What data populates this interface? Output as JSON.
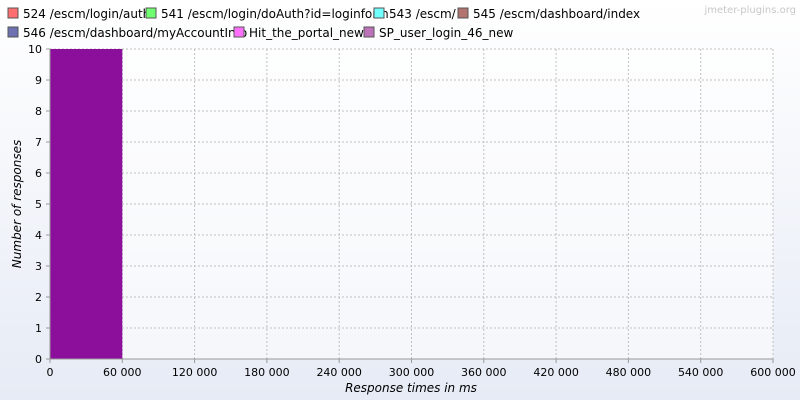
{
  "watermark": "jmeter-plugins.org",
  "chart_data": {
    "type": "bar",
    "title": "",
    "xlabel": "Response times in ms",
    "ylabel": "Number of responses",
    "xlim": [
      0,
      600000
    ],
    "ylim": [
      0,
      10
    ],
    "x_ticks": [
      "0",
      "60 000",
      "120 000",
      "180 000",
      "240 000",
      "300 000",
      "360 000",
      "420 000",
      "480 000",
      "540 000",
      "600 000"
    ],
    "y_ticks": [
      "0",
      "1",
      "2",
      "3",
      "4",
      "5",
      "6",
      "7",
      "8",
      "9",
      "10"
    ],
    "grid": true,
    "legend_position": "top",
    "series": [
      {
        "name": "524 /escm/login/auth",
        "color": "#ff6f6f",
        "values": []
      },
      {
        "name": "541 /escm/login/doAuth?id=loginform",
        "color": "#6fff6f",
        "values": []
      },
      {
        "name": "543 /escm/",
        "color": "#6fffff",
        "values": []
      },
      {
        "name": "545 /escm/dashboard/index",
        "color": "#b3736e",
        "values": []
      },
      {
        "name": "546 /escm/dashboard/myAccountInfo",
        "color": "#6e72b3",
        "values": []
      },
      {
        "name": "Hit_the_portal_new",
        "color": "#ff6fff",
        "values": []
      },
      {
        "name": "SP_user_login_46_new",
        "color": "#bb72b8",
        "values": []
      }
    ],
    "bars": [
      {
        "x_start": 0,
        "x_end": 60000,
        "y": 10,
        "color": "#8b0f9a"
      }
    ]
  }
}
